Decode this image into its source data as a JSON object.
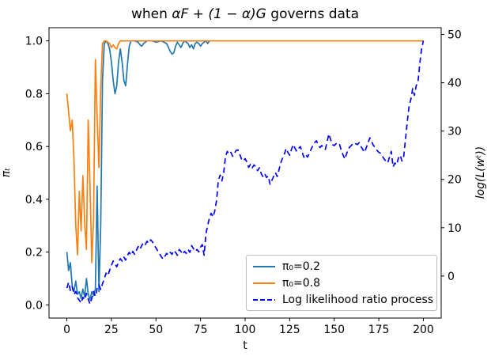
{
  "figure": {
    "background": "#ffffff"
  },
  "chart_data": {
    "type": "line",
    "title": "when αF + (1 − α)G governs data",
    "title_parts": {
      "prefix": "when ",
      "math": "αF + (1 − α)G",
      "suffix": " governs data"
    },
    "xlabel": "t",
    "ylabel_left": "πₜ",
    "ylabel_right": "log(L(wᵗ))",
    "xlim": [
      -10,
      210
    ],
    "ylim_left": [
      -0.05,
      1.05
    ],
    "ylim_right": [
      -8.7,
      51.4
    ],
    "x_ticks": [
      0,
      25,
      50,
      75,
      100,
      125,
      150,
      175,
      200
    ],
    "y_left_ticks": [
      "0.0",
      "0.2",
      "0.4",
      "0.6",
      "0.8",
      "1.0"
    ],
    "y_right_ticks": [
      "0",
      "10",
      "20",
      "30",
      "40",
      "50"
    ],
    "grid": false,
    "legend_position": "lower right",
    "spine_color": "#000000",
    "series": [
      {
        "name": "π₀=0.2",
        "color": "#1f77b4",
        "style": "solid",
        "axis": "left",
        "points": [
          [
            0,
            0.2
          ],
          [
            1,
            0.13
          ],
          [
            2,
            0.16
          ],
          [
            3,
            0.07
          ],
          [
            4,
            0.05
          ],
          [
            5,
            0.09
          ],
          [
            6,
            0.04
          ],
          [
            7,
            0.05
          ],
          [
            8,
            0.025
          ],
          [
            9,
            0.06
          ],
          [
            10,
            0.03
          ],
          [
            11,
            0.1
          ],
          [
            12,
            0.04
          ],
          [
            13,
            0.02
          ],
          [
            14,
            0.05
          ],
          [
            15,
            0.035
          ],
          [
            16,
            0.06
          ],
          [
            17,
            0.45
          ],
          [
            18,
            0.05
          ],
          [
            19,
            0.3
          ],
          [
            20,
            0.85
          ],
          [
            21,
            0.99
          ],
          [
            22,
            1.0
          ],
          [
            23,
            0.99
          ],
          [
            24,
            0.97
          ],
          [
            25,
            0.92
          ],
          [
            26,
            0.85
          ],
          [
            27,
            0.8
          ],
          [
            28,
            0.83
          ],
          [
            29,
            0.92
          ],
          [
            30,
            0.97
          ],
          [
            31,
            0.92
          ],
          [
            32,
            0.85
          ],
          [
            33,
            0.83
          ],
          [
            34,
            0.91
          ],
          [
            35,
            0.98
          ],
          [
            36,
            1.0
          ],
          [
            38,
            1.0
          ],
          [
            40,
            0.995
          ],
          [
            41,
            0.985
          ],
          [
            42,
            0.98
          ],
          [
            43,
            0.99
          ],
          [
            45,
            1.0
          ],
          [
            48,
            1.0
          ],
          [
            50,
            0.995
          ],
          [
            53,
            1.0
          ],
          [
            56,
            0.99
          ],
          [
            57,
            0.975
          ],
          [
            58,
            0.96
          ],
          [
            59,
            0.95
          ],
          [
            60,
            0.955
          ],
          [
            61,
            0.98
          ],
          [
            62,
            0.995
          ],
          [
            63,
            0.985
          ],
          [
            64,
            0.975
          ],
          [
            65,
            0.99
          ],
          [
            66,
            1.0
          ],
          [
            67,
            0.995
          ],
          [
            68,
            0.99
          ],
          [
            69,
            0.975
          ],
          [
            70,
            0.985
          ],
          [
            71,
            0.97
          ],
          [
            72,
            0.99
          ],
          [
            73,
            0.995
          ],
          [
            74,
            0.99
          ],
          [
            75,
            0.98
          ],
          [
            76,
            0.99
          ],
          [
            77,
            0.995
          ],
          [
            78,
            1.0
          ],
          [
            79,
            0.99
          ],
          [
            80,
            1.0
          ]
        ]
      },
      {
        "name": "π₀=0.8",
        "color": "#ff7f0e",
        "style": "solid",
        "axis": "left",
        "points": [
          [
            0,
            0.8
          ],
          [
            1,
            0.73
          ],
          [
            2,
            0.66
          ],
          [
            3,
            0.7
          ],
          [
            4,
            0.55
          ],
          [
            5,
            0.3
          ],
          [
            6,
            0.19
          ],
          [
            7,
            0.43
          ],
          [
            8,
            0.28
          ],
          [
            9,
            0.49
          ],
          [
            10,
            0.31
          ],
          [
            11,
            0.21
          ],
          [
            12,
            0.7
          ],
          [
            13,
            0.45
          ],
          [
            14,
            0.16
          ],
          [
            15,
            0.33
          ],
          [
            16,
            0.93
          ],
          [
            17,
            0.71
          ],
          [
            18,
            0.52
          ],
          [
            19,
            0.82
          ],
          [
            20,
            0.99
          ],
          [
            21,
            1.0
          ],
          [
            22,
            1.0
          ],
          [
            24,
            0.99
          ],
          [
            25,
            0.975
          ],
          [
            26,
            0.985
          ],
          [
            27,
            0.975
          ],
          [
            28,
            0.97
          ],
          [
            29,
            0.99
          ],
          [
            30,
            1.0
          ],
          [
            40,
            1.0
          ],
          [
            60,
            1.0
          ],
          [
            80,
            1.0
          ],
          [
            100,
            1.0
          ],
          [
            120,
            1.0
          ],
          [
            140,
            1.0
          ],
          [
            160,
            1.0
          ],
          [
            180,
            1.0
          ],
          [
            200,
            1.0
          ]
        ]
      },
      {
        "name": "Log likelihood ratio process",
        "color": "#0000ff",
        "style": "dashed",
        "axis": "right",
        "points": [
          [
            0,
            -2.5
          ],
          [
            1,
            -1.3
          ],
          [
            2,
            -3.0
          ],
          [
            3,
            -2.2
          ],
          [
            4,
            -3.8
          ],
          [
            5,
            -3.2
          ],
          [
            6,
            -4.5
          ],
          [
            7,
            -5.0
          ],
          [
            8,
            -5.6
          ],
          [
            9,
            -4.4
          ],
          [
            10,
            -4.9
          ],
          [
            11,
            -3.6
          ],
          [
            12,
            -4.8
          ],
          [
            13,
            -5.8
          ],
          [
            14,
            -4.6
          ],
          [
            15,
            -3.2
          ],
          [
            16,
            -4.2
          ],
          [
            17,
            -2.6
          ],
          [
            18,
            -1.8
          ],
          [
            19,
            -2.8
          ],
          [
            20,
            -1.6
          ],
          [
            21,
            -0.6
          ],
          [
            22,
            0.6
          ],
          [
            23,
            0.1
          ],
          [
            24,
            1.2
          ],
          [
            25,
            2.2
          ],
          [
            26,
            3.1
          ],
          [
            27,
            2.5
          ],
          [
            28,
            1.9
          ],
          [
            29,
            2.9
          ],
          [
            30,
            3.6
          ],
          [
            31,
            3.1
          ],
          [
            32,
            3.9
          ],
          [
            33,
            3.3
          ],
          [
            34,
            4.3
          ],
          [
            35,
            4.9
          ],
          [
            36,
            4.3
          ],
          [
            37,
            5.1
          ],
          [
            38,
            4.5
          ],
          [
            39,
            5.3
          ],
          [
            40,
            6.1
          ],
          [
            41,
            5.5
          ],
          [
            42,
            6.3
          ],
          [
            43,
            6.9
          ],
          [
            44,
            6.5
          ],
          [
            45,
            7.2
          ],
          [
            46,
            6.8
          ],
          [
            47,
            7.5
          ],
          [
            48,
            7.1
          ],
          [
            49,
            6.4
          ],
          [
            50,
            5.8
          ],
          [
            51,
            5.2
          ],
          [
            52,
            4.6
          ],
          [
            53,
            4.0
          ],
          [
            54,
            3.5
          ],
          [
            55,
            4.1
          ],
          [
            56,
            4.7
          ],
          [
            57,
            4.3
          ],
          [
            58,
            4.9
          ],
          [
            59,
            4.5
          ],
          [
            60,
            5.3
          ],
          [
            61,
            4.9
          ],
          [
            62,
            4.3
          ],
          [
            63,
            5.5
          ],
          [
            64,
            5.1
          ],
          [
            65,
            4.5
          ],
          [
            66,
            5.1
          ],
          [
            67,
            4.7
          ],
          [
            68,
            5.5
          ],
          [
            69,
            4.9
          ],
          [
            70,
            6.3
          ],
          [
            71,
            5.7
          ],
          [
            72,
            5.1
          ],
          [
            73,
            5.5
          ],
          [
            74,
            5.0
          ],
          [
            75,
            6.0
          ],
          [
            76,
            6.5
          ],
          [
            77,
            4.3
          ],
          [
            78,
            8.7
          ],
          [
            79,
            10.5
          ],
          [
            80,
            12.0
          ],
          [
            81,
            13.0
          ],
          [
            82,
            12.2
          ],
          [
            83,
            13.5
          ],
          [
            84,
            15.7
          ],
          [
            85,
            19.8
          ],
          [
            86,
            20.9
          ],
          [
            87,
            19.7
          ],
          [
            88,
            21.4
          ],
          [
            89,
            24.7
          ],
          [
            90,
            25.8
          ],
          [
            91,
            25.2
          ],
          [
            92,
            25.6
          ],
          [
            93,
            24.8
          ],
          [
            94,
            25.4
          ],
          [
            95,
            26.0
          ],
          [
            96,
            26.1
          ],
          [
            97,
            25.2
          ],
          [
            98,
            24.2
          ],
          [
            99,
            23.8
          ],
          [
            100,
            24.3
          ],
          [
            101,
            23.6
          ],
          [
            102,
            22.5
          ],
          [
            103,
            23.1
          ],
          [
            104,
            22.4
          ],
          [
            105,
            23.0
          ],
          [
            106,
            22.6
          ],
          [
            107,
            21.8
          ],
          [
            108,
            22.4
          ],
          [
            109,
            21.2
          ],
          [
            110,
            20.6
          ],
          [
            111,
            21.2
          ],
          [
            112,
            20.4
          ],
          [
            113,
            20.7
          ],
          [
            114,
            19.0
          ],
          [
            115,
            19.8
          ],
          [
            116,
            20.6
          ],
          [
            117,
            21.4
          ],
          [
            118,
            20.6
          ],
          [
            119,
            22.0
          ],
          [
            120,
            23.4
          ],
          [
            121,
            24.4
          ],
          [
            122,
            25.2
          ],
          [
            123,
            26.4
          ],
          [
            124,
            25.6
          ],
          [
            125,
            25.0
          ],
          [
            126,
            26.2
          ],
          [
            127,
            27.2
          ],
          [
            128,
            26.4
          ],
          [
            129,
            25.8
          ],
          [
            130,
            26.4
          ],
          [
            131,
            26.8
          ],
          [
            132,
            25.6
          ],
          [
            133,
            24.6
          ],
          [
            134,
            25.2
          ],
          [
            135,
            24.6
          ],
          [
            136,
            25.4
          ],
          [
            137,
            26.2
          ],
          [
            138,
            27.0
          ],
          [
            139,
            27.6
          ],
          [
            140,
            28.0
          ],
          [
            141,
            27.2
          ],
          [
            142,
            26.6
          ],
          [
            143,
            27.0
          ],
          [
            144,
            26.6
          ],
          [
            145,
            26.2
          ],
          [
            146,
            27.8
          ],
          [
            147,
            29.4
          ],
          [
            148,
            28.2
          ],
          [
            149,
            27.2
          ],
          [
            150,
            27.0
          ],
          [
            151,
            27.4
          ],
          [
            152,
            27.0
          ],
          [
            153,
            27.2
          ],
          [
            154,
            26.0
          ],
          [
            155,
            25.0
          ],
          [
            156,
            24.2
          ],
          [
            157,
            25.4
          ],
          [
            158,
            26.4
          ],
          [
            159,
            26.8
          ],
          [
            160,
            27.2
          ],
          [
            161,
            27.0
          ],
          [
            162,
            27.4
          ],
          [
            163,
            27.2
          ],
          [
            164,
            27.6
          ],
          [
            165,
            26.8
          ],
          [
            166,
            26.2
          ],
          [
            167,
            25.6
          ],
          [
            168,
            26.6
          ],
          [
            169,
            27.6
          ],
          [
            170,
            28.6
          ],
          [
            171,
            27.8
          ],
          [
            172,
            27.0
          ],
          [
            173,
            26.6
          ],
          [
            174,
            26.0
          ],
          [
            175,
            25.6
          ],
          [
            176,
            25.4
          ],
          [
            177,
            24.8
          ],
          [
            178,
            24.2
          ],
          [
            179,
            23.8
          ],
          [
            180,
            23.4
          ],
          [
            181,
            24.6
          ],
          [
            182,
            25.8
          ],
          [
            183,
            22.6
          ],
          [
            184,
            23.4
          ],
          [
            185,
            23.0
          ],
          [
            186,
            24.4
          ],
          [
            187,
            25.0
          ],
          [
            188,
            23.8
          ],
          [
            189,
            24.8
          ],
          [
            190,
            28.4
          ],
          [
            191,
            32.0
          ],
          [
            192,
            35.2
          ],
          [
            193,
            36.6
          ],
          [
            194,
            38.8
          ],
          [
            195,
            37.4
          ],
          [
            196,
            39.4
          ],
          [
            197,
            40.2
          ],
          [
            198,
            44.0
          ],
          [
            199,
            47.0
          ],
          [
            200,
            48.7
          ]
        ]
      }
    ]
  }
}
